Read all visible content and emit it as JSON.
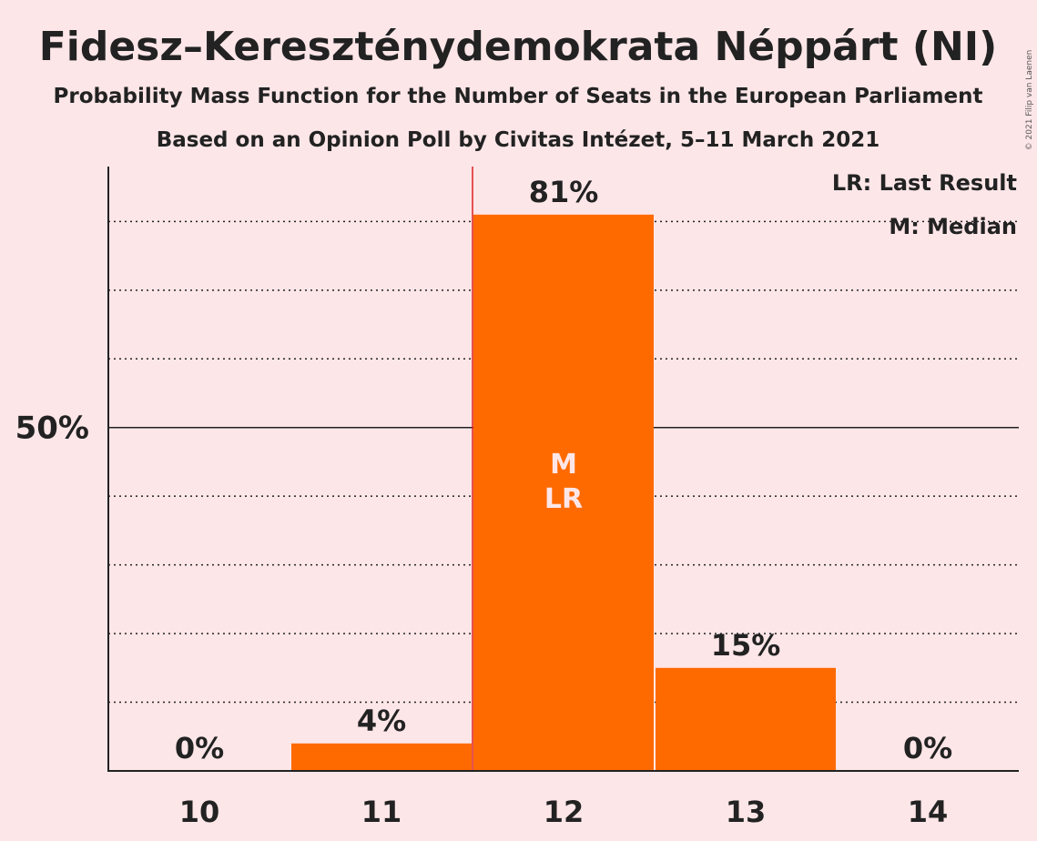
{
  "chart_data": {
    "type": "bar",
    "title": "Fidesz–Kereszténydemokrata Néppárt (NI)",
    "subtitle": "Probability Mass Function for the Number of Seats in the European Parliament",
    "subtitle2": "Based on an Opinion Poll by Civitas Intézet, 5–11 March 2021",
    "copyright": "© 2021 Filip van Laenen",
    "categories": [
      "10",
      "11",
      "12",
      "13",
      "14"
    ],
    "values": [
      0,
      4,
      81,
      15,
      0
    ],
    "value_labels": [
      "0%",
      "4%",
      "81%",
      "15%",
      "0%"
    ],
    "ylim": [
      0,
      88
    ],
    "y_major_tick": {
      "value": 50,
      "label": "50%"
    },
    "y_minor_ticks": [
      10,
      20,
      30,
      40,
      60,
      70,
      80
    ],
    "last_result": "11.5",
    "median_category": "12",
    "bar_marks": [
      "M",
      "LR"
    ],
    "legend": [
      "LR: Last Result",
      "M: Median"
    ],
    "legend_position": "top-right",
    "colors": {
      "background": "#fde6e8",
      "bar": "#ff6a00",
      "last_result_line": "#dd2020",
      "text": "#222222",
      "bar_mark_text": "#fde6e8"
    }
  }
}
